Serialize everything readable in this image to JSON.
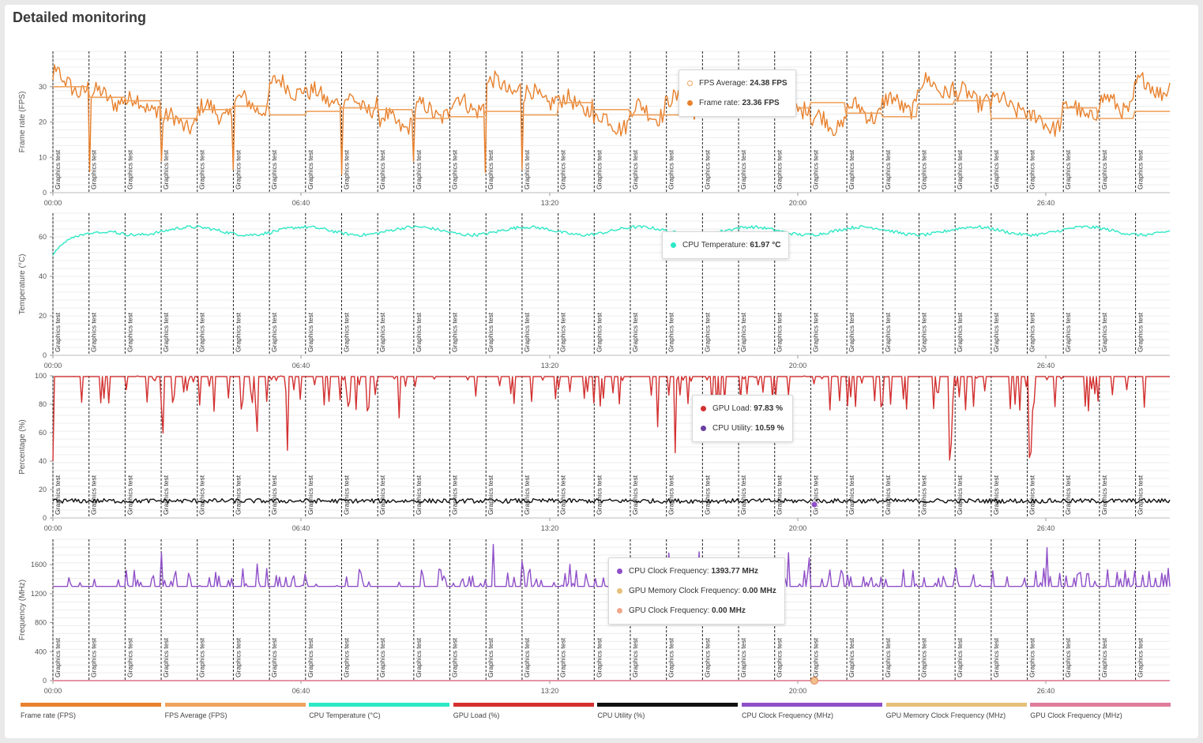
{
  "page": {
    "title": "Detailed monitoring"
  },
  "colors": {
    "frame_rate": "#e8812d",
    "fps_average": "#efa35f",
    "cpu_temperature": "#2ee8c6",
    "gpu_load": "#d33030",
    "cpu_utility": "#111111",
    "cpu_clock": "#8f4fc8",
    "gpu_mem_clock": "#e6c07a",
    "gpu_clock": "#e07c9b",
    "marker_line": "#222222",
    "grid": "#ececec"
  },
  "legend": [
    {
      "label": "Frame rate (FPS)",
      "color": "#e8812d"
    },
    {
      "label": "FPS Average (FPS)",
      "color": "#efa35f"
    },
    {
      "label": "CPU Temperature (°C)",
      "color": "#2ee8c6"
    },
    {
      "label": "GPU Load (%)",
      "color": "#d33030"
    },
    {
      "label": "CPU Utility (%)",
      "color": "#111111"
    },
    {
      "label": "CPU Clock Frequency (MHz)",
      "color": "#8f4fc8"
    },
    {
      "label": "GPU Memory Clock Frequency (MHz)",
      "color": "#e6c07a"
    },
    {
      "label": "GPU Clock Frequency (MHz)",
      "color": "#e07c9b"
    }
  ],
  "tooltips": {
    "fps": [
      {
        "label": "FPS Average",
        "value": "24.38 FPS",
        "color": "#efa35f",
        "hollow": true
      },
      {
        "label": "Frame rate",
        "value": "23.36 FPS",
        "color": "#e8812d",
        "hollow": false
      }
    ],
    "temp": [
      {
        "label": "CPU Temperature",
        "value": "61.97 °C",
        "color": "#2ee8c6",
        "hollow": false
      }
    ],
    "load": [
      {
        "label": "GPU Load",
        "value": "97.83 %",
        "color": "#d33030",
        "hollow": false
      },
      {
        "label": "CPU Utility",
        "value": "10.59 %",
        "color": "#6a3fa0",
        "hollow": false
      }
    ],
    "freq": [
      {
        "label": "CPU Clock Frequency",
        "value": "1393.77 MHz",
        "color": "#8f4fc8",
        "hollow": false
      },
      {
        "label": "GPU Memory Clock Frequency",
        "value": "0.00 MHz",
        "color": "#e6c07a",
        "hollow": false
      },
      {
        "label": "GPU Clock Frequency",
        "value": "0.00 MHz",
        "color": "#f0a78a",
        "hollow": false
      }
    ]
  },
  "chart_data": [
    {
      "id": "fps",
      "type": "line",
      "title": "",
      "xlabel": "",
      "ylabel": "Frame rate (FPS)",
      "x_range_seconds": [
        0,
        1800
      ],
      "x_ticks": [
        "00:00",
        "06:40",
        "13:20",
        "20:00",
        "26:40"
      ],
      "ylim": [
        0,
        40
      ],
      "y_ticks": [
        0,
        10,
        20,
        30
      ],
      "grid": true,
      "series": [
        {
          "name": "Frame rate",
          "color": "#e8812d",
          "baseline": 24.0,
          "amplitude": 4.5,
          "noise": 2.5,
          "dips": true
        },
        {
          "name": "FPS Average",
          "color": "#efa35f",
          "segment_values": [
            30,
            27,
            26,
            21,
            23.5,
            24.5,
            22,
            23,
            24,
            23.5,
            21,
            21.5,
            23,
            22,
            25.5,
            23.5,
            22,
            22,
            22,
            22.5,
            24,
            25.5,
            22.5,
            21.5,
            25,
            26,
            21,
            21,
            24,
            21,
            23,
            25
          ]
        }
      ]
    },
    {
      "id": "temp",
      "type": "line",
      "title": "",
      "xlabel": "",
      "ylabel": "Temperature (°C)",
      "x_range_seconds": [
        0,
        1800
      ],
      "x_ticks": [
        "00:00",
        "06:40",
        "13:20",
        "20:00",
        "26:40"
      ],
      "ylim": [
        0,
        72
      ],
      "y_ticks": [
        0,
        20,
        40,
        60
      ],
      "grid": true,
      "series": [
        {
          "name": "CPU Temperature",
          "color": "#2ee8c6",
          "start": 51,
          "baseline": 63,
          "amplitude": 2,
          "noise": 0.8
        }
      ]
    },
    {
      "id": "load",
      "type": "line",
      "title": "",
      "xlabel": "",
      "ylabel": "Percentage (%)",
      "x_range_seconds": [
        0,
        1800
      ],
      "x_ticks": [
        "00:00",
        "06:40",
        "13:20",
        "20:00",
        "26:40"
      ],
      "ylim": [
        0,
        100
      ],
      "y_ticks": [
        0,
        20,
        40,
        60,
        80,
        100
      ],
      "grid": true,
      "series": [
        {
          "name": "GPU Load",
          "color": "#d33030",
          "baseline": 99.5,
          "dip_min": 40,
          "dip_rate": 0.2
        },
        {
          "name": "CPU Utility",
          "color": "#111111",
          "baseline": 12,
          "noise": 1.6
        }
      ]
    },
    {
      "id": "freq",
      "type": "line",
      "title": "",
      "xlabel": "",
      "ylabel": "Frequency (MHz)",
      "x_range_seconds": [
        0,
        1800
      ],
      "x_ticks": [
        "00:00",
        "06:40",
        "13:20",
        "20:00",
        "26:40"
      ],
      "ylim": [
        0,
        1950
      ],
      "y_ticks": [
        0,
        400,
        800,
        1200,
        1600
      ],
      "grid": true,
      "series": [
        {
          "name": "CPU Clock Frequency",
          "color": "#8f4fc8",
          "baseline": 1300,
          "spike_max": 1900,
          "spike_rate": 0.25
        },
        {
          "name": "GPU Memory Clock Frequency",
          "color": "#e6c07a",
          "constant": 0
        },
        {
          "name": "GPU Clock Frequency",
          "color": "#e07c9b",
          "constant": 0
        }
      ]
    }
  ],
  "markers": {
    "label": "Graphics test",
    "count": 31
  }
}
